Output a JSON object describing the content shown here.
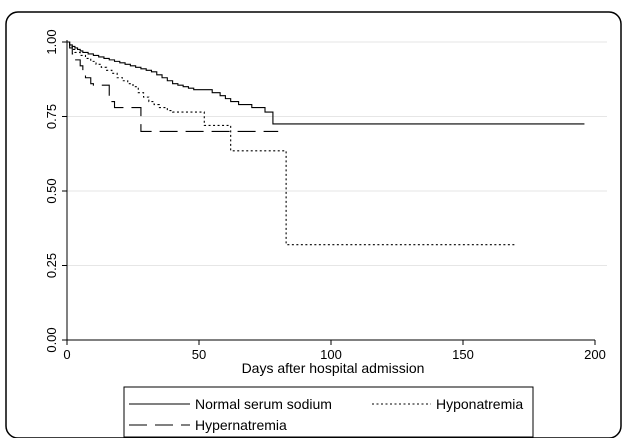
{
  "chart_data": {
    "type": "line",
    "chart_subtype": "kaplan-meier step",
    "xlabel": "Days after hospital admission",
    "ylabel": "",
    "xlim": [
      0,
      200
    ],
    "ylim": [
      0,
      1
    ],
    "x_ticks": [
      0,
      50,
      100,
      150,
      200
    ],
    "x_tick_labels": [
      "0",
      "50",
      "100",
      "150",
      "200"
    ],
    "y_ticks": [
      0,
      0.25,
      0.5,
      0.75,
      1.0
    ],
    "y_tick_labels": [
      "0.00",
      "0.25",
      "0.50",
      "0.75",
      "1.00"
    ],
    "grid": "horizontal",
    "legend": "bottom",
    "series": [
      {
        "name": "Normal serum sodium",
        "style": "solid",
        "color": "#000000",
        "x": [
          0,
          1,
          2,
          3,
          4,
          5,
          6,
          8,
          10,
          12,
          14,
          16,
          18,
          20,
          22,
          24,
          26,
          28,
          30,
          32,
          34,
          36,
          38,
          40,
          42,
          44,
          46,
          48,
          50,
          55,
          58,
          60,
          62,
          65,
          70,
          75,
          78,
          196
        ],
        "y": [
          1.0,
          0.99,
          0.985,
          0.98,
          0.975,
          0.97,
          0.965,
          0.96,
          0.955,
          0.95,
          0.945,
          0.94,
          0.935,
          0.93,
          0.925,
          0.92,
          0.915,
          0.91,
          0.905,
          0.9,
          0.89,
          0.88,
          0.87,
          0.86,
          0.855,
          0.85,
          0.845,
          0.84,
          0.84,
          0.83,
          0.82,
          0.81,
          0.8,
          0.79,
          0.78,
          0.765,
          0.725,
          0.725
        ]
      },
      {
        "name": "Hyponatremia",
        "style": "dotted",
        "color": "#000000",
        "x": [
          0,
          1,
          2,
          3,
          5,
          7,
          9,
          11,
          13,
          15,
          17,
          19,
          21,
          23,
          25,
          27,
          29,
          31,
          33,
          35,
          38,
          40,
          52,
          54,
          62,
          64,
          82,
          83,
          170
        ],
        "y": [
          1.0,
          0.985,
          0.975,
          0.965,
          0.955,
          0.945,
          0.935,
          0.925,
          0.915,
          0.905,
          0.895,
          0.88,
          0.87,
          0.86,
          0.85,
          0.83,
          0.815,
          0.8,
          0.79,
          0.78,
          0.77,
          0.765,
          0.72,
          0.72,
          0.635,
          0.635,
          0.635,
          0.32,
          0.32
        ]
      },
      {
        "name": "Hypernatremia",
        "style": "dashed",
        "color": "#000000",
        "x": [
          0,
          1,
          2,
          3,
          5,
          6,
          7,
          9,
          10,
          12,
          16,
          18,
          20,
          27,
          28,
          80
        ],
        "y": [
          1.0,
          0.98,
          0.96,
          0.94,
          0.92,
          0.9,
          0.88,
          0.86,
          0.855,
          0.855,
          0.8,
          0.78,
          0.78,
          0.78,
          0.7,
          0.7
        ]
      }
    ]
  }
}
